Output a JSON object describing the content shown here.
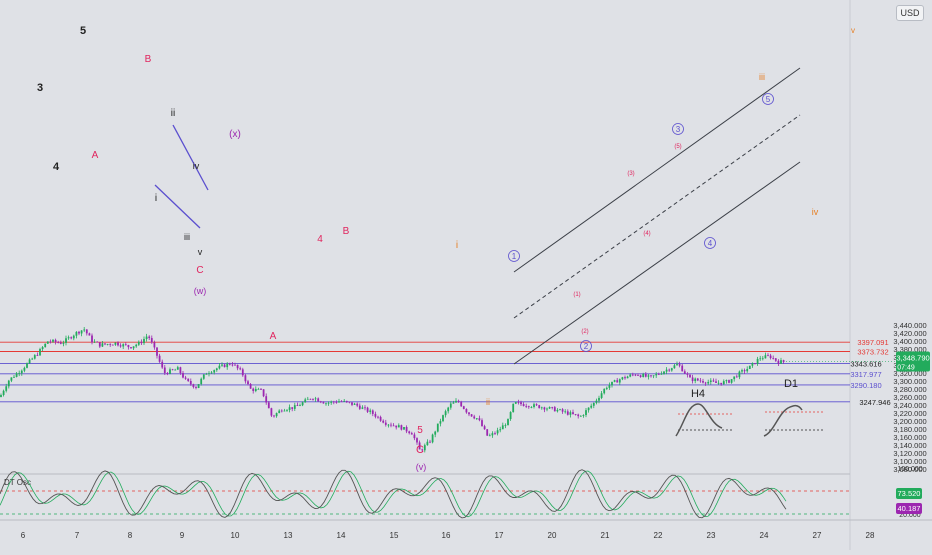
{
  "currency": "USD",
  "colors": {
    "background": "#dfe1e6",
    "up_candle": "#22ab5c",
    "down_candle": "#9c27b0",
    "resistance": "#e53935",
    "support": "#5b4fcf",
    "wave_impulse": "#222222",
    "wave_red": "#e0245e",
    "wave_orange": "#e67e22",
    "wave_purple": "#9c27b0",
    "wave_blue": "#5b4fcf",
    "channel": "#3b3f47"
  },
  "price_axis": {
    "min": 3080,
    "max": 3460,
    "ticks": [
      "3,440.000",
      "3,420.000",
      "3,400.000",
      "3,380.000",
      "3,360.000",
      "3,340.000",
      "3,320.000",
      "3,300.000",
      "3,280.000",
      "3,260.000",
      "3,240.000",
      "3,220.000",
      "3,200.000",
      "3,180.000",
      "3,160.000",
      "3,140.000",
      "3,120.000",
      "3,100.000",
      "3,080.000"
    ],
    "current_price": "3,348.790",
    "countdown": "07:49"
  },
  "time_axis": {
    "labels": [
      "6",
      "7",
      "8",
      "9",
      "10",
      "13",
      "14",
      "15",
      "16",
      "17",
      "20",
      "21",
      "22",
      "23",
      "24",
      "27",
      "28"
    ]
  },
  "levels": [
    {
      "label": "3397.091",
      "value": 3397.091,
      "kind": "resistance"
    },
    {
      "label": "3373.732",
      "value": 3373.732,
      "kind": "resistance"
    },
    {
      "label": "3343.616",
      "value": 3343.616,
      "kind": "support"
    },
    {
      "label": "3317.977",
      "value": 3317.977,
      "kind": "support"
    },
    {
      "label": "3290.180",
      "value": 3290.18,
      "kind": "support"
    },
    {
      "label": "3247.946",
      "value": 3247.946,
      "kind": "support"
    }
  ],
  "wave_labels": [
    {
      "text": "5",
      "color": "wave_impulse"
    },
    {
      "text": "3",
      "color": "wave_impulse"
    },
    {
      "text": "4",
      "color": "wave_impulse"
    },
    {
      "text": "B",
      "color": "wave_red"
    },
    {
      "text": "A",
      "color": "wave_red"
    },
    {
      "text": "ii",
      "color": "wave_impulse"
    },
    {
      "text": "iv",
      "color": "wave_impulse"
    },
    {
      "text": "i",
      "color": "wave_impulse"
    },
    {
      "text": "iii",
      "color": "wave_impulse"
    },
    {
      "text": "v",
      "color": "wave_impulse"
    },
    {
      "text": "C",
      "color": "wave_red"
    },
    {
      "text": "(w)",
      "color": "wave_purple"
    },
    {
      "text": "(x)",
      "color": "wave_purple"
    },
    {
      "text": "4",
      "color": "wave_red"
    },
    {
      "text": "B",
      "color": "wave_red"
    },
    {
      "text": "A",
      "color": "wave_red"
    },
    {
      "text": "5",
      "color": "wave_red"
    },
    {
      "text": "C",
      "color": "wave_red"
    },
    {
      "text": "(v)",
      "color": "wave_purple"
    },
    {
      "text": "i",
      "color": "wave_orange"
    },
    {
      "text": "ii",
      "color": "wave_orange"
    },
    {
      "text": "iii",
      "color": "wave_orange"
    },
    {
      "text": "iv",
      "color": "wave_orange"
    },
    {
      "text": "v",
      "color": "wave_orange"
    },
    {
      "text": "1",
      "color": "wave_blue"
    },
    {
      "text": "2",
      "color": "wave_blue"
    },
    {
      "text": "3",
      "color": "wave_blue"
    },
    {
      "text": "4",
      "color": "wave_blue"
    },
    {
      "text": "5",
      "color": "wave_blue"
    },
    {
      "text": "(1)",
      "color": "wave_red"
    },
    {
      "text": "(2)",
      "color": "wave_red"
    },
    {
      "text": "(3)",
      "color": "wave_red"
    },
    {
      "text": "(4)",
      "color": "wave_red"
    },
    {
      "text": "(5)",
      "color": "wave_red"
    }
  ],
  "insets": [
    {
      "label": "H4"
    },
    {
      "label": "D1"
    }
  ],
  "oscillator": {
    "label": "DT Osc",
    "ticks": [
      "100.000",
      "60.000",
      "20.000"
    ],
    "value_fast": "73.520",
    "value_slow": "40.187"
  },
  "chart_data": {
    "type": "line",
    "title": "",
    "xlabel": "",
    "ylabel": "",
    "ylim": [
      3080,
      3460
    ],
    "x": [
      "6",
      "7",
      "8",
      "9",
      "10",
      "13",
      "14",
      "15",
      "16",
      "17",
      "20",
      "21",
      "22",
      "23",
      "24"
    ],
    "series": [
      {
        "values": [
          3290,
          3430,
          3388,
          3282,
          3342,
          3262,
          3242,
          3122,
          3252,
          3222,
          3210,
          3320,
          3340,
          3290,
          3348.79
        ]
      }
    ]
  }
}
